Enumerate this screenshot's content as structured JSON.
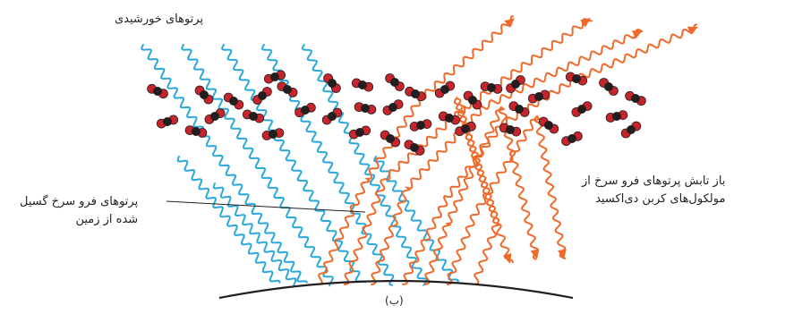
{
  "labels": {
    "solar_rays": "پرتوهای خورشیدی",
    "earth_ir_line1": "پرتوهای فرو سرخ گسیل",
    "earth_ir_line2": "شده از زمین",
    "reemission_line1": "باز تابش پرتوهای فرو سرخ از",
    "reemission_line2": "مولکول‌های کربن دی‌اکسید",
    "caption": "(ب)"
  },
  "colors": {
    "solar_ray": "#2aa8dc",
    "infrared_ray": "#ef6a2a",
    "co2_oxygen": "#c8242b",
    "co2_carbon": "#231f20",
    "ground": "#231f20"
  }
}
